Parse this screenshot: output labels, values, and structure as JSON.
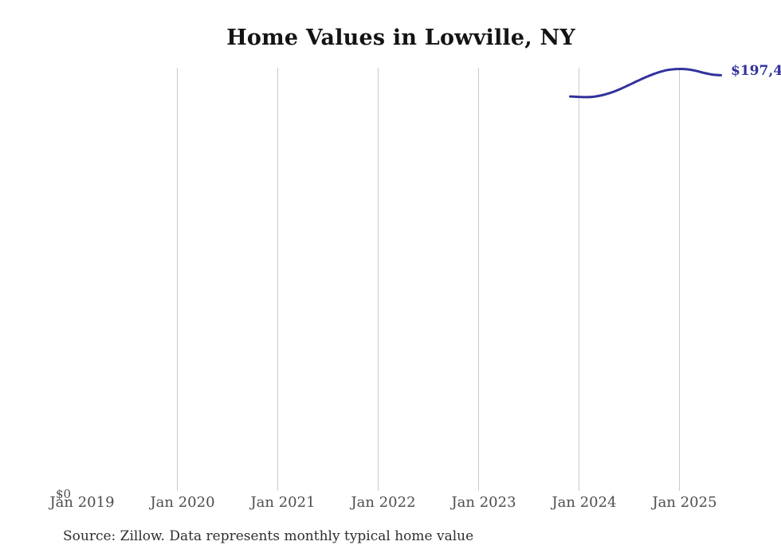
{
  "header": {
    "title": "Home Values in Lowville, NY"
  },
  "footer": {
    "source_note": "Source: Zillow. Data represents monthly typical home value"
  },
  "axes": {
    "y_zero_label": "$0",
    "x_ticks": [
      {
        "label": "Jan 2019",
        "gridline": false
      },
      {
        "label": "Jan 2020",
        "gridline": true
      },
      {
        "label": "Jan 2021",
        "gridline": true
      },
      {
        "label": "Jan 2022",
        "gridline": true
      },
      {
        "label": "Jan 2023",
        "gridline": true
      },
      {
        "label": "Jan 2024",
        "gridline": true
      },
      {
        "label": "Jan 2025",
        "gridline": true
      }
    ]
  },
  "line": {
    "end_label": "$197,4"
  },
  "colors": {
    "line": "#32329d",
    "gridline": "#cbcbcb",
    "title": "#141414",
    "axis_label": "#4d4d4d",
    "source": "#2f2f2f"
  },
  "chart_data": {
    "type": "line",
    "title": "Home Values in Lowville, NY",
    "xlabel": "",
    "ylabel": "",
    "x": [
      "2023-12",
      "2024-01",
      "2024-02",
      "2024-03",
      "2024-04",
      "2024-05",
      "2024-06",
      "2024-07",
      "2024-08",
      "2024-09",
      "2024-10",
      "2024-11",
      "2024-12",
      "2025-01",
      "2025-02",
      "2025-03",
      "2025-04",
      "2025-05",
      "2025-06"
    ],
    "series": [
      {
        "name": "Typical home value",
        "values": [
          187300,
          187100,
          187000,
          187300,
          188100,
          189300,
          190900,
          192700,
          194600,
          196400,
          198000,
          199300,
          200100,
          200400,
          200200,
          199500,
          198500,
          197700,
          197400
        ]
      }
    ],
    "end_value_label": "$197,4",
    "x_axis_tick_labels": [
      "Jan 2019",
      "Jan 2020",
      "Jan 2021",
      "Jan 2022",
      "Jan 2023",
      "Jan 2024",
      "Jan 2025"
    ],
    "x_axis_range": [
      "2019-01",
      "2026-01"
    ],
    "ylim": [
      0,
      201000
    ],
    "grid": "vertical-only",
    "legend": "none"
  }
}
